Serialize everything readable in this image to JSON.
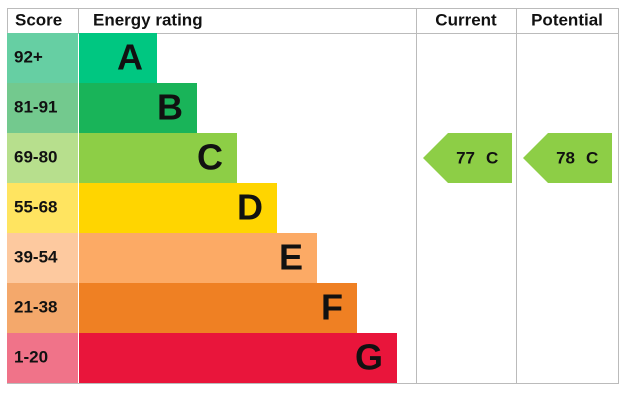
{
  "headers": {
    "score": "Score",
    "rating": "Energy rating",
    "current": "Current",
    "potential": "Potential"
  },
  "bands": [
    {
      "score": "92+",
      "letter": "A",
      "color": "#00c781",
      "score_color": "#66cfa3"
    },
    {
      "score": "81-91",
      "letter": "B",
      "color": "#19b459",
      "score_color": "#73c98e"
    },
    {
      "score": "69-80",
      "letter": "C",
      "color": "#8dce46",
      "score_color": "#b7df8d"
    },
    {
      "score": "55-68",
      "letter": "D",
      "color": "#ffd500",
      "score_color": "#ffe460"
    },
    {
      "score": "39-54",
      "letter": "E",
      "color": "#fcaa65",
      "score_color": "#fdc99f"
    },
    {
      "score": "21-38",
      "letter": "F",
      "color": "#ef8023",
      "score_color": "#f4a86b"
    },
    {
      "score": "1-20",
      "letter": "G",
      "color": "#e9153b",
      "score_color": "#f07389"
    }
  ],
  "current": {
    "value": 77,
    "letter": "C"
  },
  "potential": {
    "value": 78,
    "letter": "C"
  }
}
